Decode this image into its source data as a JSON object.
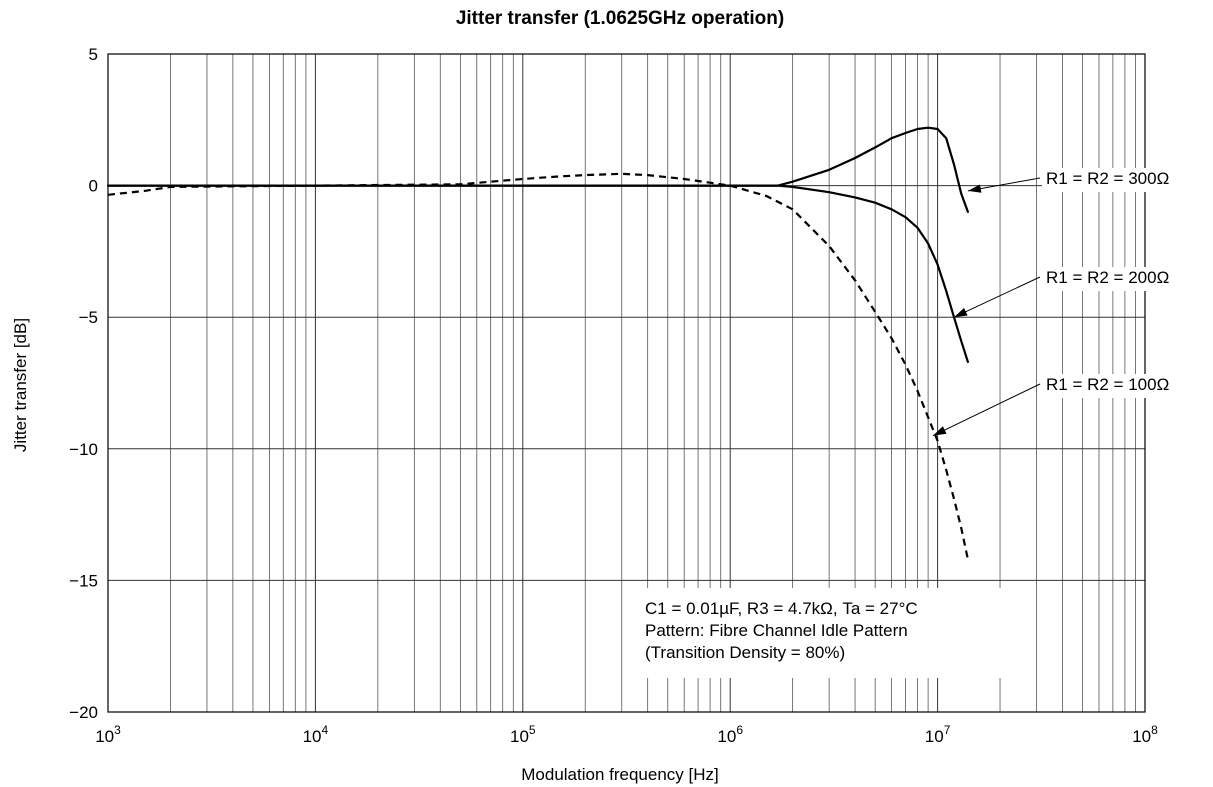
{
  "chart_data": {
    "type": "line",
    "title": "Jitter transfer (1.0625GHz operation)",
    "xlabel": "Modulation frequency [Hz]",
    "ylabel": "Jitter transfer [dB]",
    "xscale": "log",
    "xlim": [
      1000,
      100000000
    ],
    "ylim": [
      -20,
      5
    ],
    "grid": "on",
    "x_ticks": [
      {
        "base": "10",
        "exp": "3"
      },
      {
        "base": "10",
        "exp": "4"
      },
      {
        "base": "10",
        "exp": "5"
      },
      {
        "base": "10",
        "exp": "6"
      },
      {
        "base": "10",
        "exp": "7"
      },
      {
        "base": "10",
        "exp": "8"
      }
    ],
    "y_ticks": [
      "5",
      "0",
      "−5",
      "−10",
      "−15",
      "−20"
    ],
    "series": [
      {
        "name": "R1 = R2 = 300Ω",
        "style": "solid",
        "x": [
          1000,
          1700000,
          2000000,
          3000000,
          4000000,
          5000000,
          6000000,
          7000000,
          8000000,
          9000000,
          10000000,
          11000000,
          12000000,
          13000000,
          14000000
        ],
        "y": [
          0.0,
          0.0,
          0.15,
          0.6,
          1.05,
          1.45,
          1.8,
          2.0,
          2.15,
          2.2,
          2.15,
          1.8,
          0.8,
          -0.3,
          -1.0
        ]
      },
      {
        "name": "R1 = R2 = 200Ω",
        "style": "solid",
        "x": [
          1000,
          1700000,
          2000000,
          3000000,
          4000000,
          5000000,
          6000000,
          7000000,
          8000000,
          9000000,
          10000000,
          11000000,
          12000000,
          13000000,
          14000000
        ],
        "y": [
          0.0,
          0.0,
          -0.05,
          -0.25,
          -0.45,
          -0.65,
          -0.9,
          -1.2,
          -1.6,
          -2.2,
          -3.0,
          -4.0,
          -5.0,
          -5.9,
          -6.7
        ]
      },
      {
        "name": "R1 = R2 = 100Ω",
        "style": "dashed",
        "x": [
          1000,
          1500,
          2000,
          50000,
          70000,
          100000,
          150000,
          200000,
          300000,
          400000,
          600000,
          1000000,
          1500000,
          2000000,
          3000000,
          4000000,
          5000000,
          6000000,
          7000000,
          8000000,
          9000000,
          10000000,
          11000000,
          12000000,
          13000000,
          14000000
        ],
        "y": [
          -0.35,
          -0.2,
          -0.05,
          0.05,
          0.15,
          0.25,
          0.35,
          0.4,
          0.45,
          0.4,
          0.25,
          0.0,
          -0.4,
          -0.9,
          -2.3,
          -3.6,
          -4.8,
          -5.8,
          -6.8,
          -7.8,
          -8.8,
          -9.7,
          -10.8,
          -11.9,
          -13.0,
          -14.2
        ]
      }
    ],
    "annotations": [
      {
        "text": "R1 = R2 = 300Ω",
        "series": 0,
        "point": [
          14000000,
          -0.2
        ]
      },
      {
        "text": "R1 = R2 = 200Ω",
        "series": 1,
        "point": [
          12000000,
          -5.0
        ]
      },
      {
        "text": "R1 = R2 = 100Ω",
        "series": 2,
        "point": [
          9500000,
          -9.5
        ]
      }
    ],
    "note_lines": [
      "C1 = 0.01µF, R3 = 4.7kΩ, Ta = 27°C",
      "Pattern: Fibre Channel Idle Pattern",
      "(Transition Density = 80%)"
    ]
  }
}
